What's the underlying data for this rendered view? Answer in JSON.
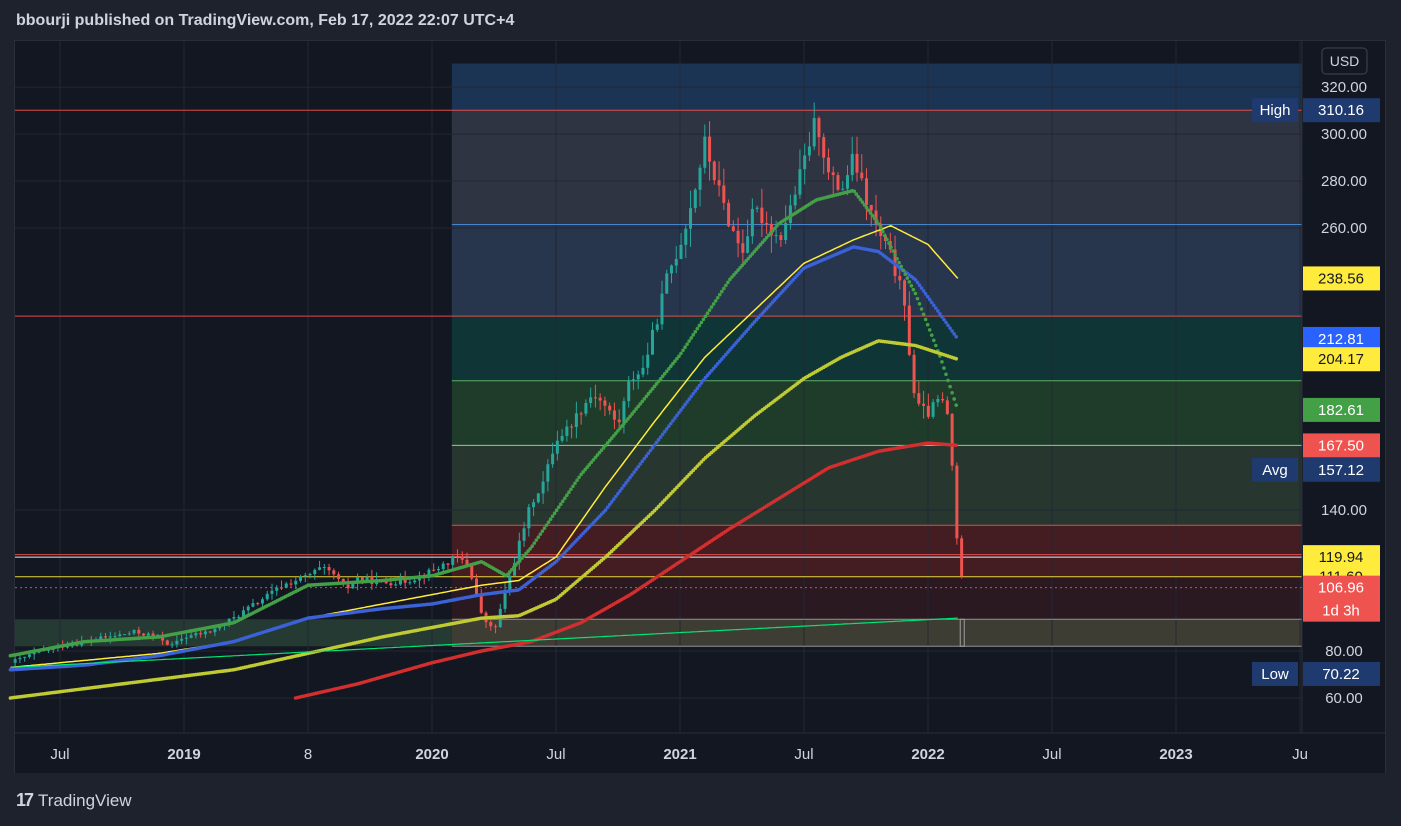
{
  "header": {
    "title": "bbourji published on TradingView.com, Feb 17, 2022 22:07 UTC+4"
  },
  "footer": {
    "logo_text": "17",
    "brand": "TradingView"
  },
  "chart_data": {
    "type": "candlestick",
    "title": "",
    "currency": "USD",
    "x_ticks": [
      {
        "t": 2018.5,
        "label": "Jul",
        "bold": false
      },
      {
        "t": 2019.0,
        "label": "2019",
        "bold": true
      },
      {
        "t": 2019.5,
        "label": "8",
        "bold": false
      },
      {
        "t": 2020.0,
        "label": "2020",
        "bold": true
      },
      {
        "t": 2020.5,
        "label": "Jul",
        "bold": false
      },
      {
        "t": 2021.0,
        "label": "2021",
        "bold": true
      },
      {
        "t": 2021.5,
        "label": "Jul",
        "bold": false
      },
      {
        "t": 2022.0,
        "label": "2022",
        "bold": true
      },
      {
        "t": 2022.5,
        "label": "Jul",
        "bold": false
      },
      {
        "t": 2023.0,
        "label": "2023",
        "bold": true
      },
      {
        "t": 2023.5,
        "label": "Ju",
        "bold": false
      }
    ],
    "y_ticks": [
      60,
      80,
      140,
      260,
      280,
      300,
      320
    ],
    "y_tick_labels": [
      "60.00",
      "80.00",
      "140.00",
      "260.00",
      "280.00",
      "300.00",
      "320.00"
    ],
    "price_tags": [
      {
        "value": 310.16,
        "label": "310.16",
        "prefix": "High",
        "bg": "#1e3a6e",
        "fg": "#ffffff"
      },
      {
        "value": 238.56,
        "label": "238.56",
        "prefix": "",
        "bg": "#ffeb3b",
        "fg": "#131722"
      },
      {
        "value": 212.81,
        "label": "212.81",
        "prefix": "",
        "bg": "#2962ff",
        "fg": "#ffffff"
      },
      {
        "value": 204.17,
        "label": "204.17",
        "prefix": "",
        "bg": "#ffeb3b",
        "fg": "#131722"
      },
      {
        "value": 182.61,
        "label": "182.61",
        "prefix": "",
        "bg": "#43a047",
        "fg": "#ffffff"
      },
      {
        "value": 167.5,
        "label": "167.50",
        "prefix": "",
        "bg": "#ef5350",
        "fg": "#ffffff"
      },
      {
        "value": 157.12,
        "label": "157.12",
        "prefix": "Avg",
        "bg": "#1e3a6e",
        "fg": "#ffffff"
      },
      {
        "value": 119.94,
        "label": "119.94",
        "prefix": "",
        "bg": "#ffeb3b",
        "fg": "#131722"
      },
      {
        "value": 111.6,
        "label": "111.60",
        "prefix": "",
        "bg": "#ffeb3b",
        "fg": "#131722"
      },
      {
        "value": 106.96,
        "label": "106.96",
        "sub": "1d 3h",
        "prefix": "",
        "bg": "#ef5350",
        "fg": "#ffffff"
      },
      {
        "value": 70.22,
        "label": "70.22",
        "prefix": "Low",
        "bg": "#1e3a6e",
        "fg": "#ffffff"
      }
    ],
    "horizontal_levels": [
      {
        "value": 310.16,
        "color": "#ef5350"
      },
      {
        "value": 261.5,
        "color": "#4a90d9"
      },
      {
        "value": 222.5,
        "color": "#ef5350"
      },
      {
        "value": 195.0,
        "color": "#66bb6a"
      },
      {
        "value": 167.5,
        "color": "#a5d6a7"
      },
      {
        "value": 133.5,
        "color": "#ef5350"
      },
      {
        "value": 121.0,
        "color": "#ef5350"
      },
      {
        "value": 119.94,
        "color": "#ffffff"
      },
      {
        "value": 111.6,
        "color": "#ffeb3b"
      },
      {
        "value": 106.96,
        "color": "#ef5350"
      },
      {
        "value": 93.5,
        "color": "#9e9e9e"
      },
      {
        "value": 82.0,
        "color": "#9e9e9e"
      }
    ],
    "close_series": [
      [
        2018.3,
        75
      ],
      [
        2018.4,
        79
      ],
      [
        2018.5,
        82
      ],
      [
        2018.6,
        84
      ],
      [
        2018.7,
        86
      ],
      [
        2018.8,
        88
      ],
      [
        2018.9,
        86
      ],
      [
        2018.95,
        82
      ],
      [
        2019.0,
        86
      ],
      [
        2019.1,
        88
      ],
      [
        2019.2,
        94
      ],
      [
        2019.3,
        101
      ],
      [
        2019.4,
        108
      ],
      [
        2019.5,
        112
      ],
      [
        2019.55,
        115
      ],
      [
        2019.6,
        113
      ],
      [
        2019.65,
        106
      ],
      [
        2019.7,
        111
      ],
      [
        2019.8,
        109
      ],
      [
        2019.9,
        110
      ],
      [
        2020.0,
        114
      ],
      [
        2020.1,
        120
      ],
      [
        2020.15,
        116
      ],
      [
        2020.2,
        95
      ],
      [
        2020.25,
        88
      ],
      [
        2020.3,
        107
      ],
      [
        2020.35,
        125
      ],
      [
        2020.4,
        143
      ],
      [
        2020.45,
        152
      ],
      [
        2020.5,
        170
      ],
      [
        2020.55,
        175
      ],
      [
        2020.6,
        183
      ],
      [
        2020.65,
        190
      ],
      [
        2020.7,
        184
      ],
      [
        2020.75,
        176
      ],
      [
        2020.8,
        196
      ],
      [
        2020.85,
        200
      ],
      [
        2020.9,
        218
      ],
      [
        2020.95,
        240
      ],
      [
        2021.0,
        253
      ],
      [
        2021.05,
        272
      ],
      [
        2021.1,
        296
      ],
      [
        2021.15,
        278
      ],
      [
        2021.2,
        262
      ],
      [
        2021.25,
        250
      ],
      [
        2021.3,
        268
      ],
      [
        2021.35,
        262
      ],
      [
        2021.4,
        255
      ],
      [
        2021.45,
        270
      ],
      [
        2021.5,
        288
      ],
      [
        2021.55,
        307
      ],
      [
        2021.6,
        282
      ],
      [
        2021.65,
        276
      ],
      [
        2021.7,
        290
      ],
      [
        2021.75,
        272
      ],
      [
        2021.8,
        258
      ],
      [
        2021.85,
        248
      ],
      [
        2021.9,
        230
      ],
      [
        2021.95,
        185
      ],
      [
        2022.0,
        181
      ],
      [
        2022.05,
        188
      ],
      [
        2022.08,
        180
      ],
      [
        2022.1,
        155
      ],
      [
        2022.12,
        123
      ],
      [
        2022.14,
        106.96
      ]
    ],
    "indicators": [
      {
        "name": "",
        "color": "#ffeb3b",
        "style": "line",
        "points": [
          [
            2018.3,
            73
          ],
          [
            2018.6,
            76
          ],
          [
            2018.9,
            79
          ],
          [
            2019.2,
            84
          ],
          [
            2019.5,
            94
          ],
          [
            2019.8,
            100
          ],
          [
            2020.0,
            104
          ],
          [
            2020.2,
            108
          ],
          [
            2020.35,
            110
          ],
          [
            2020.5,
            120
          ],
          [
            2020.7,
            150
          ],
          [
            2020.9,
            178
          ],
          [
            2021.1,
            205
          ],
          [
            2021.3,
            225
          ],
          [
            2021.5,
            245
          ],
          [
            2021.7,
            255
          ],
          [
            2021.85,
            261
          ],
          [
            2022.0,
            253
          ],
          [
            2022.12,
            238.56
          ]
        ]
      },
      {
        "name": "",
        "color": "#3b62d6",
        "style": "dots",
        "points": [
          [
            2018.3,
            72
          ],
          [
            2018.6,
            74
          ],
          [
            2018.9,
            78
          ],
          [
            2019.2,
            84
          ],
          [
            2019.5,
            94
          ],
          [
            2019.8,
            98
          ],
          [
            2020.0,
            100
          ],
          [
            2020.2,
            104
          ],
          [
            2020.35,
            106
          ],
          [
            2020.5,
            118
          ],
          [
            2020.7,
            140
          ],
          [
            2020.9,
            168
          ],
          [
            2021.1,
            196
          ],
          [
            2021.3,
            220
          ],
          [
            2021.5,
            243
          ],
          [
            2021.7,
            252
          ],
          [
            2021.8,
            250
          ],
          [
            2021.95,
            238
          ],
          [
            2022.12,
            212.81
          ]
        ]
      },
      {
        "name": "",
        "color": "#43a047",
        "style": "dots",
        "points": [
          [
            2018.3,
            78
          ],
          [
            2018.6,
            84
          ],
          [
            2018.9,
            86
          ],
          [
            2019.2,
            92
          ],
          [
            2019.5,
            108
          ],
          [
            2019.8,
            110
          ],
          [
            2020.0,
            112
          ],
          [
            2020.2,
            118
          ],
          [
            2020.3,
            112
          ],
          [
            2020.4,
            124
          ],
          [
            2020.6,
            155
          ],
          [
            2020.8,
            180
          ],
          [
            2021.0,
            206
          ],
          [
            2021.2,
            238
          ],
          [
            2021.4,
            262
          ],
          [
            2021.55,
            272
          ],
          [
            2021.7,
            276
          ],
          [
            2021.8,
            262
          ],
          [
            2021.95,
            232
          ],
          [
            2022.05,
            205
          ],
          [
            2022.12,
            182.61
          ]
        ]
      },
      {
        "name": "",
        "color": "#c0ca33",
        "style": "dots",
        "points": [
          [
            2018.3,
            60
          ],
          [
            2018.6,
            64
          ],
          [
            2018.9,
            68
          ],
          [
            2019.2,
            72
          ],
          [
            2019.5,
            79
          ],
          [
            2019.8,
            86
          ],
          [
            2020.0,
            90
          ],
          [
            2020.2,
            94
          ],
          [
            2020.35,
            95
          ],
          [
            2020.5,
            102
          ],
          [
            2020.7,
            120
          ],
          [
            2020.9,
            140
          ],
          [
            2021.1,
            162
          ],
          [
            2021.3,
            180
          ],
          [
            2021.5,
            196
          ],
          [
            2021.65,
            205
          ],
          [
            2021.8,
            212
          ],
          [
            2021.95,
            210
          ],
          [
            2022.12,
            204.17
          ]
        ]
      },
      {
        "name": "",
        "color": "#d32f2f",
        "style": "dots",
        "points": [
          [
            2019.45,
            60
          ],
          [
            2019.7,
            66
          ],
          [
            2020.0,
            75
          ],
          [
            2020.2,
            80
          ],
          [
            2020.4,
            84
          ],
          [
            2020.6,
            92
          ],
          [
            2020.8,
            104
          ],
          [
            2021.0,
            118
          ],
          [
            2021.2,
            132
          ],
          [
            2021.4,
            145
          ],
          [
            2021.6,
            158
          ],
          [
            2021.8,
            165
          ],
          [
            2022.0,
            168.5
          ],
          [
            2022.12,
            167.5
          ]
        ]
      },
      {
        "name": "",
        "color": "#00e676",
        "style": "line",
        "points": [
          [
            2018.3,
            73
          ],
          [
            2022.12,
            94
          ]
        ]
      }
    ]
  },
  "colors": {
    "background": "#131722",
    "panel": "#1e222d",
    "up": "#26a69a",
    "down": "#ef5350",
    "axis_text": "#d1d4dc"
  }
}
